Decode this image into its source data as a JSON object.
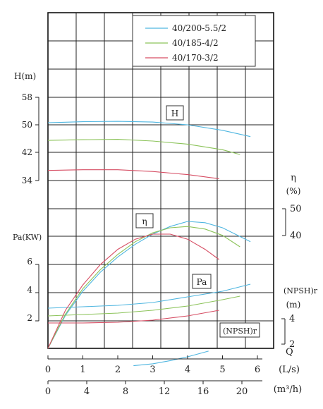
{
  "chart_data": {
    "type": "line",
    "legend": {
      "placement": "top-right",
      "entries": [
        {
          "label": "40/200-5.5/2",
          "color": "#4fb6e0"
        },
        {
          "label": "40/185-4/2",
          "color": "#8cc35a"
        },
        {
          "label": "40/170-3/2",
          "color": "#d64d63"
        }
      ]
    },
    "grid": true,
    "x_axes": {
      "q_ls": {
        "label": "(L/s)",
        "range": [
          0,
          6.15
        ],
        "ticks": [
          "0",
          "1",
          "2",
          "3",
          "4",
          "5",
          "6"
        ]
      },
      "q_m3h": {
        "label": "(m³/h)",
        "ticks": [
          "0",
          "4",
          "8",
          "12",
          "16",
          "20"
        ]
      },
      "q_symbol": "Q"
    },
    "y_axes": {
      "head": {
        "label": "H(m)",
        "range": [
          34,
          58
        ],
        "ticks": [
          "58",
          "50",
          "42",
          "34"
        ],
        "box_label": "H"
      },
      "efficiency": {
        "label": "η",
        "unit": "(%)",
        "ticks": [
          "50",
          "40"
        ],
        "box_label": "η"
      },
      "power": {
        "label": "Pa(KW)",
        "ticks": [
          "6",
          "4",
          "2"
        ],
        "box_label": "Pa"
      },
      "npsh": {
        "label": "(NPSH)r",
        "unit": "(m)",
        "ticks": [
          "4",
          "2"
        ],
        "box_label": "(NPSH)r"
      }
    },
    "series": [
      {
        "name": "40/200-5.5/2",
        "color": "#4fb6e0",
        "head": {
          "x": [
            0,
            1,
            2,
            3,
            4,
            5,
            5.8
          ],
          "y": [
            50.6,
            50.9,
            51.0,
            50.8,
            50.0,
            48.4,
            46.6
          ]
        },
        "efficiency_norm": {
          "x": [
            0,
            0.5,
            1,
            1.5,
            2,
            2.5,
            3,
            3.5,
            4,
            4.5,
            5,
            5.8
          ],
          "y": [
            0,
            0.26,
            0.45,
            0.6,
            0.72,
            0.82,
            0.9,
            0.96,
            1.0,
            0.99,
            0.95,
            0.84
          ]
        },
        "power_kw": {
          "x": [
            0,
            1,
            2,
            3,
            4,
            5,
            5.8
          ],
          "y": [
            2.9,
            3.0,
            3.1,
            3.3,
            3.7,
            4.1,
            4.6
          ]
        },
        "npsh_m": {
          "x": [
            2.45,
            3,
            3.5,
            4,
            4.6
          ],
          "y": [
            0.3,
            0.45,
            0.7,
            1.0,
            1.45
          ]
        }
      },
      {
        "name": "40/185-4/2",
        "color": "#8cc35a",
        "head": {
          "x": [
            0,
            1,
            2,
            3,
            4,
            5,
            5.5
          ],
          "y": [
            45.5,
            45.7,
            45.8,
            45.3,
            44.4,
            42.8,
            41.4
          ]
        },
        "efficiency_norm": {
          "x": [
            0,
            0.5,
            1,
            1.5,
            2,
            2.5,
            3,
            3.5,
            4,
            4.5,
            5,
            5.5
          ],
          "y": [
            0,
            0.27,
            0.47,
            0.62,
            0.74,
            0.84,
            0.91,
            0.95,
            0.96,
            0.94,
            0.89,
            0.8
          ]
        },
        "power_kw": {
          "x": [
            0,
            1,
            2,
            3,
            4,
            5,
            5.5
          ],
          "y": [
            2.35,
            2.45,
            2.55,
            2.75,
            3.05,
            3.5,
            3.75
          ]
        }
      },
      {
        "name": "40/170-3/2",
        "color": "#d64d63",
        "head": {
          "x": [
            0,
            1,
            2,
            3,
            4,
            4.9
          ],
          "y": [
            36.8,
            37.0,
            37.0,
            36.5,
            35.6,
            34.4
          ]
        },
        "efficiency_norm": {
          "x": [
            0,
            0.5,
            1,
            1.5,
            2,
            2.5,
            3,
            3.5,
            4,
            4.5,
            4.9
          ],
          "y": [
            0,
            0.3,
            0.5,
            0.66,
            0.78,
            0.86,
            0.9,
            0.9,
            0.86,
            0.78,
            0.7
          ]
        },
        "power_kw": {
          "x": [
            0,
            1,
            2,
            3,
            4,
            4.9
          ],
          "y": [
            1.85,
            1.85,
            1.9,
            2.05,
            2.35,
            2.75
          ]
        }
      }
    ]
  }
}
